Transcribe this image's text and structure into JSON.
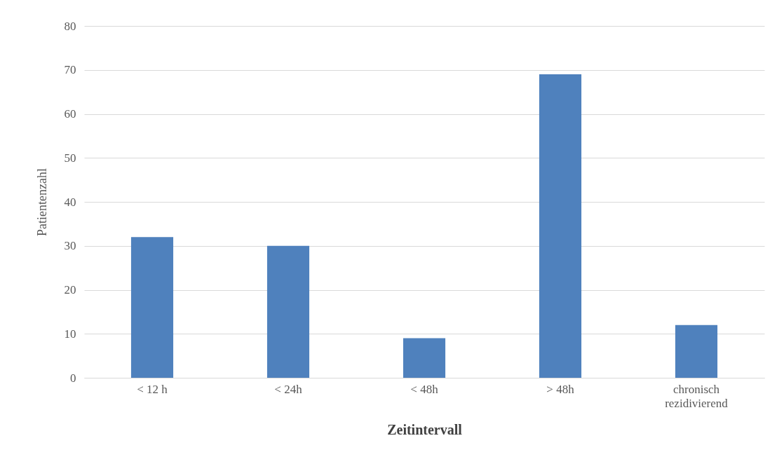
{
  "chart_data": {
    "type": "bar",
    "xlabel": "Zeitintervall",
    "ylabel": "Patientenzahl",
    "categories": [
      "< 12 h",
      "< 24h",
      "< 48h",
      "> 48h",
      "chronisch rezidivierend"
    ],
    "values": [
      32,
      30,
      9,
      69,
      12
    ],
    "color": "#4f81bd",
    "ylim": [
      0,
      80
    ],
    "yticks": [
      0,
      10,
      20,
      30,
      40,
      50,
      60,
      70,
      80
    ],
    "grid": "y"
  }
}
